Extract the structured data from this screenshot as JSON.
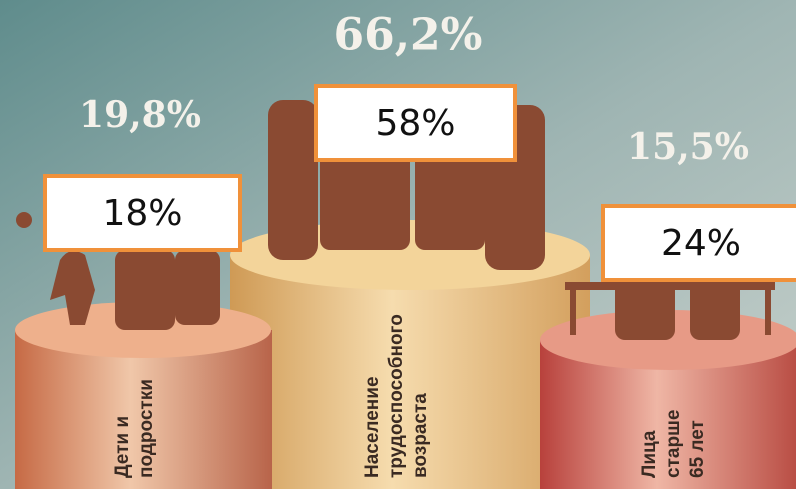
{
  "groups": [
    {
      "label_lines": [
        "Дети и",
        "подростки"
      ],
      "old_value": "19,8%",
      "new_value": "18%"
    },
    {
      "label_lines": [
        "Население",
        "трудоспособного",
        "возраста"
      ],
      "old_value": "66,2%",
      "new_value": "58%"
    },
    {
      "label_lines": [
        "Лица",
        "старше",
        "65 лет"
      ],
      "old_value": "15,5%",
      "new_value": "24%"
    }
  ]
}
